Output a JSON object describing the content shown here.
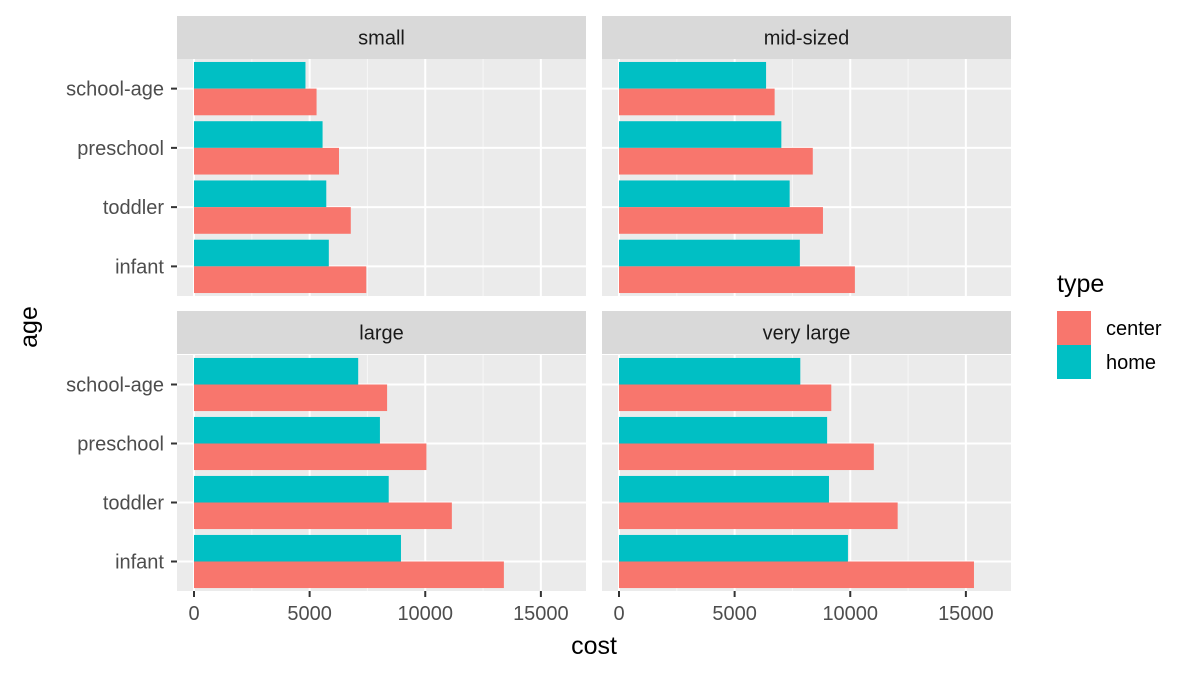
{
  "chart_data": {
    "type": "bar",
    "orientation": "horizontal",
    "facet_wrap": true,
    "xlabel": "cost",
    "ylabel": "age",
    "xlim": [
      0,
      16000
    ],
    "x_ticks": [
      0,
      5000,
      10000,
      15000
    ],
    "categories": [
      "infant",
      "toddler",
      "preschool",
      "school-age"
    ],
    "grid": true,
    "legend": {
      "title": "type",
      "placement": "right",
      "entries": [
        {
          "name": "center",
          "color": "#F8766D"
        },
        {
          "name": "home",
          "color": "#00BFC4"
        }
      ]
    },
    "panels": [
      {
        "title": "small",
        "series": [
          {
            "name": "center",
            "values": [
              7450,
              6780,
              6270,
              5300
            ]
          },
          {
            "name": "home",
            "values": [
              5830,
              5720,
              5560,
              4820
            ]
          }
        ]
      },
      {
        "title": "mid-sized",
        "series": [
          {
            "name": "center",
            "values": [
              10200,
              8820,
              8380,
              6730
            ]
          },
          {
            "name": "home",
            "values": [
              7820,
              7380,
              7020,
              6360
            ]
          }
        ]
      },
      {
        "title": "large",
        "series": [
          {
            "name": "center",
            "values": [
              13400,
              11150,
              10050,
              8350
            ]
          },
          {
            "name": "home",
            "values": [
              8950,
              8420,
              8040,
              7100
            ]
          }
        ]
      },
      {
        "title": "very large",
        "series": [
          {
            "name": "center",
            "values": [
              15350,
              12050,
              11020,
              9180
            ]
          },
          {
            "name": "home",
            "values": [
              9900,
              9080,
              9000,
              7840
            ]
          }
        ]
      }
    ]
  }
}
